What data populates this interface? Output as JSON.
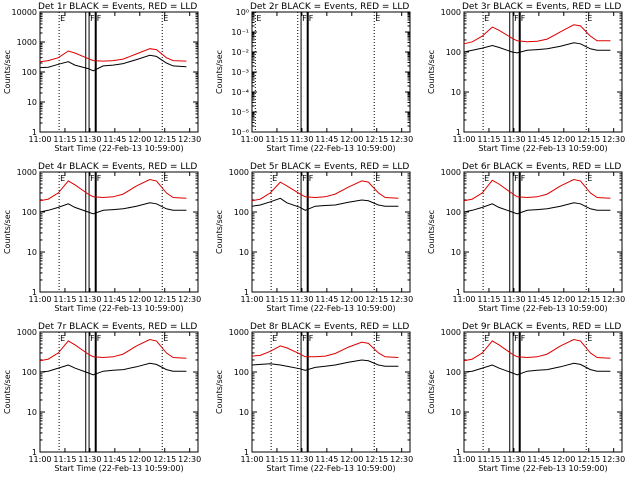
{
  "page": {
    "xlabel": "Start Time (22-Feb-13 10:59:00)",
    "ylabel": "Counts/sec",
    "x_ticks": [
      "11:00",
      "11:15",
      "11:30",
      "11:45",
      "12:00",
      "12:15",
      "12:30"
    ]
  },
  "chart_data": [
    {
      "type": "line",
      "title": "Det 1r BLACK = Events, RED = LLD",
      "scale": "log",
      "ylim": [
        1,
        10000
      ],
      "y_ticks": [
        "1",
        "10",
        "100",
        "1000",
        "10000"
      ],
      "markers": [
        {
          "t": 11.5,
          "label": "E",
          "style": "dotted"
        },
        {
          "t": 27.5,
          "label": "",
          "style": "thin"
        },
        {
          "t": 29.5,
          "label": "F",
          "style": "thin"
        },
        {
          "t": 33.5,
          "label": "F",
          "style": "thick"
        },
        {
          "t": 73.5,
          "label": "E",
          "style": "dotted"
        }
      ],
      "series": [
        {
          "name": "BLACK = Events",
          "color": "#000000",
          "x": [
            0,
            5,
            11,
            17,
            21,
            29,
            32,
            38,
            44,
            50,
            58,
            66,
            70,
            76,
            80,
            88
          ],
          "y": [
            140,
            145,
            180,
            220,
            170,
            130,
            110,
            160,
            170,
            190,
            260,
            360,
            330,
            200,
            160,
            150
          ]
        },
        {
          "name": "RED = LLD",
          "color": "#dd0000",
          "x": [
            0,
            5,
            11,
            17,
            21,
            29,
            32,
            38,
            44,
            50,
            58,
            66,
            70,
            76,
            80,
            88
          ],
          "y": [
            220,
            240,
            300,
            500,
            430,
            280,
            240,
            230,
            240,
            270,
            400,
            600,
            560,
            300,
            240,
            230
          ]
        }
      ]
    },
    {
      "type": "line",
      "title": "Det 2r BLACK = Events, RED = LLD",
      "scale": "log",
      "ylim": [
        1e-06,
        1
      ],
      "y_ticks": [
        "10⁻⁶",
        "10⁻⁵",
        "10⁻⁴",
        "10⁻³",
        "10⁻²",
        "10⁻¹",
        "10⁰"
      ],
      "markers": [
        {
          "t": 2,
          "label": "E",
          "style": "dotted"
        },
        {
          "t": 27.5,
          "label": "",
          "style": "dotted"
        },
        {
          "t": 29.5,
          "label": "F",
          "style": "thin"
        },
        {
          "t": 33.5,
          "label": "F",
          "style": "thick"
        },
        {
          "t": 73.5,
          "label": "E",
          "style": "dotted"
        }
      ],
      "series": []
    },
    {
      "type": "line",
      "title": "Det 3r BLACK = Events, RED = LLD",
      "scale": "log",
      "ylim": [
        1,
        1000
      ],
      "y_ticks": [
        "1",
        "10",
        "100",
        "1000"
      ],
      "markers": [
        {
          "t": 11.5,
          "label": "E",
          "style": "dotted"
        },
        {
          "t": 27.5,
          "label": "",
          "style": "thin"
        },
        {
          "t": 29.5,
          "label": "F",
          "style": "thin"
        },
        {
          "t": 33.5,
          "label": "F",
          "style": "thick"
        },
        {
          "t": 73.5,
          "label": "E",
          "style": "dotted"
        }
      ],
      "series": [
        {
          "name": "BLACK = Events",
          "color": "#000000",
          "x": [
            0,
            5,
            11,
            17,
            21,
            29,
            32,
            38,
            44,
            50,
            58,
            66,
            70,
            76,
            80,
            88
          ],
          "y": [
            100,
            110,
            125,
            145,
            130,
            100,
            95,
            110,
            115,
            120,
            140,
            170,
            160,
            120,
            110,
            110
          ]
        },
        {
          "name": "RED = LLD",
          "color": "#dd0000",
          "x": [
            0,
            5,
            11,
            17,
            21,
            29,
            32,
            38,
            44,
            50,
            58,
            66,
            70,
            76,
            80,
            88
          ],
          "y": [
            160,
            180,
            250,
            420,
            350,
            220,
            190,
            180,
            185,
            210,
            320,
            480,
            450,
            250,
            190,
            190
          ]
        }
      ]
    },
    {
      "type": "line",
      "title": "Det 4r BLACK = Events, RED = LLD",
      "scale": "log",
      "ylim": [
        1,
        1000
      ],
      "y_ticks": [
        "1",
        "10",
        "100",
        "1000"
      ],
      "markers": [
        {
          "t": 11.5,
          "label": "E",
          "style": "dotted"
        },
        {
          "t": 27.5,
          "label": "",
          "style": "thin"
        },
        {
          "t": 29.5,
          "label": "F",
          "style": "thin"
        },
        {
          "t": 33.5,
          "label": "F",
          "style": "thick"
        },
        {
          "t": 73.5,
          "label": "E",
          "style": "dotted"
        }
      ],
      "series": [
        {
          "name": "BLACK = Events",
          "color": "#000000",
          "x": [
            0,
            5,
            11,
            17,
            21,
            29,
            32,
            38,
            44,
            50,
            58,
            66,
            70,
            76,
            80,
            88
          ],
          "y": [
            100,
            110,
            130,
            160,
            130,
            100,
            90,
            110,
            115,
            120,
            140,
            170,
            160,
            120,
            110,
            110
          ]
        },
        {
          "name": "RED = LLD",
          "color": "#dd0000",
          "x": [
            0,
            5,
            11,
            17,
            21,
            29,
            32,
            38,
            44,
            50,
            58,
            66,
            70,
            76,
            80,
            88
          ],
          "y": [
            190,
            210,
            300,
            600,
            480,
            280,
            240,
            230,
            240,
            280,
            450,
            650,
            600,
            300,
            230,
            220
          ]
        }
      ]
    },
    {
      "type": "line",
      "title": "Det 5r BLACK = Events, RED = LLD",
      "scale": "log",
      "ylim": [
        1,
        1000
      ],
      "y_ticks": [
        "1",
        "10",
        "100",
        "1000"
      ],
      "markers": [
        {
          "t": 11.5,
          "label": "E",
          "style": "dotted"
        },
        {
          "t": 27.5,
          "label": "",
          "style": "dotted"
        },
        {
          "t": 29.5,
          "label": "F",
          "style": "thin"
        },
        {
          "t": 33.5,
          "label": "F",
          "style": "thick"
        },
        {
          "t": 73.5,
          "label": "E",
          "style": "dotted"
        }
      ],
      "series": [
        {
          "name": "BLACK = Events",
          "color": "#000000",
          "x": [
            0,
            5,
            11,
            17,
            21,
            29,
            32,
            38,
            44,
            50,
            58,
            66,
            70,
            76,
            80,
            88
          ],
          "y": [
            140,
            150,
            180,
            220,
            170,
            130,
            110,
            140,
            145,
            150,
            175,
            200,
            190,
            150,
            140,
            140
          ]
        },
        {
          "name": "RED = LLD",
          "color": "#dd0000",
          "x": [
            0,
            5,
            11,
            17,
            21,
            29,
            32,
            38,
            44,
            50,
            58,
            66,
            70,
            76,
            80,
            88
          ],
          "y": [
            190,
            210,
            300,
            560,
            450,
            280,
            240,
            230,
            240,
            280,
            420,
            600,
            560,
            300,
            230,
            220
          ]
        }
      ]
    },
    {
      "type": "line",
      "title": "Det 6r BLACK = Events, RED = LLD",
      "scale": "log",
      "ylim": [
        1,
        1000
      ],
      "y_ticks": [
        "1",
        "10",
        "100",
        "1000"
      ],
      "markers": [
        {
          "t": 11.5,
          "label": "E",
          "style": "dotted"
        },
        {
          "t": 27.5,
          "label": "",
          "style": "thin"
        },
        {
          "t": 29.5,
          "label": "F",
          "style": "thin"
        },
        {
          "t": 33.5,
          "label": "F",
          "style": "thick"
        },
        {
          "t": 73.5,
          "label": "E",
          "style": "dotted"
        }
      ],
      "series": [
        {
          "name": "BLACK = Events",
          "color": "#000000",
          "x": [
            0,
            5,
            11,
            17,
            21,
            29,
            32,
            38,
            44,
            50,
            58,
            66,
            70,
            76,
            80,
            88
          ],
          "y": [
            100,
            110,
            130,
            160,
            130,
            100,
            90,
            110,
            115,
            120,
            140,
            170,
            160,
            120,
            110,
            110
          ]
        },
        {
          "name": "RED = LLD",
          "color": "#dd0000",
          "x": [
            0,
            5,
            11,
            17,
            21,
            29,
            32,
            38,
            44,
            50,
            58,
            66,
            70,
            76,
            80,
            88
          ],
          "y": [
            190,
            210,
            300,
            620,
            500,
            290,
            240,
            230,
            240,
            280,
            450,
            650,
            600,
            300,
            230,
            220
          ]
        }
      ]
    },
    {
      "type": "line",
      "title": "Det 7r BLACK = Events, RED = LLD",
      "scale": "log",
      "ylim": [
        1,
        1000
      ],
      "y_ticks": [
        "1",
        "10",
        "100",
        "1000"
      ],
      "markers": [
        {
          "t": 11.5,
          "label": "E",
          "style": "dotted"
        },
        {
          "t": 27.5,
          "label": "",
          "style": "thin"
        },
        {
          "t": 29.5,
          "label": "F",
          "style": "thin"
        },
        {
          "t": 33.5,
          "label": "F",
          "style": "thick"
        },
        {
          "t": 73.5,
          "label": "E",
          "style": "dotted"
        }
      ],
      "series": [
        {
          "name": "BLACK = Events",
          "color": "#000000",
          "x": [
            0,
            5,
            11,
            17,
            21,
            29,
            32,
            38,
            44,
            50,
            58,
            66,
            70,
            76,
            80,
            88
          ],
          "y": [
            100,
            105,
            125,
            150,
            125,
            95,
            85,
            105,
            110,
            115,
            135,
            165,
            155,
            115,
            105,
            105
          ]
        },
        {
          "name": "RED = LLD",
          "color": "#dd0000",
          "x": [
            0,
            5,
            11,
            17,
            21,
            29,
            32,
            38,
            44,
            50,
            58,
            66,
            70,
            76,
            80,
            88
          ],
          "y": [
            190,
            210,
            300,
            600,
            480,
            280,
            240,
            230,
            240,
            280,
            450,
            650,
            600,
            300,
            230,
            220
          ]
        }
      ]
    },
    {
      "type": "line",
      "title": "Det 8r BLACK = Events, RED = LLD",
      "scale": "log",
      "ylim": [
        1,
        1000
      ],
      "y_ticks": [
        "1",
        "10",
        "100",
        "1000"
      ],
      "markers": [
        {
          "t": 11.5,
          "label": "E",
          "style": "dotted"
        },
        {
          "t": 27.5,
          "label": "",
          "style": "dotted"
        },
        {
          "t": 29.5,
          "label": "F",
          "style": "thin"
        },
        {
          "t": 33.5,
          "label": "F",
          "style": "thick"
        },
        {
          "t": 73.5,
          "label": "E",
          "style": "dotted"
        }
      ],
      "series": [
        {
          "name": "BLACK = Events",
          "color": "#000000",
          "x": [
            0,
            5,
            11,
            17,
            21,
            29,
            32,
            38,
            44,
            50,
            58,
            66,
            70,
            76,
            80,
            88
          ],
          "y": [
            150,
            155,
            160,
            150,
            140,
            120,
            110,
            130,
            140,
            150,
            175,
            200,
            190,
            150,
            140,
            140
          ]
        },
        {
          "name": "RED = LLD",
          "color": "#dd0000",
          "x": [
            0,
            5,
            11,
            17,
            21,
            29,
            32,
            38,
            44,
            50,
            58,
            66,
            70,
            76,
            80,
            88
          ],
          "y": [
            250,
            260,
            330,
            450,
            400,
            280,
            240,
            240,
            250,
            290,
            420,
            560,
            520,
            300,
            240,
            230
          ]
        }
      ]
    },
    {
      "type": "line",
      "title": "Det 9r BLACK = Events, RED = LLD",
      "scale": "log",
      "ylim": [
        1,
        1000
      ],
      "y_ticks": [
        "1",
        "10",
        "100",
        "1000"
      ],
      "markers": [
        {
          "t": 11.5,
          "label": "E",
          "style": "dotted"
        },
        {
          "t": 27.5,
          "label": "",
          "style": "thin"
        },
        {
          "t": 29.5,
          "label": "F",
          "style": "thin"
        },
        {
          "t": 33.5,
          "label": "F",
          "style": "thick"
        },
        {
          "t": 73.5,
          "label": "E",
          "style": "dotted"
        }
      ],
      "series": [
        {
          "name": "BLACK = Events",
          "color": "#000000",
          "x": [
            0,
            5,
            11,
            17,
            21,
            29,
            32,
            38,
            44,
            50,
            58,
            66,
            70,
            76,
            80,
            88
          ],
          "y": [
            100,
            105,
            125,
            150,
            125,
            95,
            85,
            105,
            110,
            115,
            135,
            165,
            155,
            115,
            105,
            105
          ]
        },
        {
          "name": "RED = LLD",
          "color": "#dd0000",
          "x": [
            0,
            5,
            11,
            17,
            21,
            29,
            32,
            38,
            44,
            50,
            58,
            66,
            70,
            76,
            80,
            88
          ],
          "y": [
            190,
            210,
            300,
            600,
            480,
            280,
            240,
            230,
            240,
            280,
            450,
            650,
            600,
            300,
            230,
            220
          ]
        }
      ]
    }
  ]
}
